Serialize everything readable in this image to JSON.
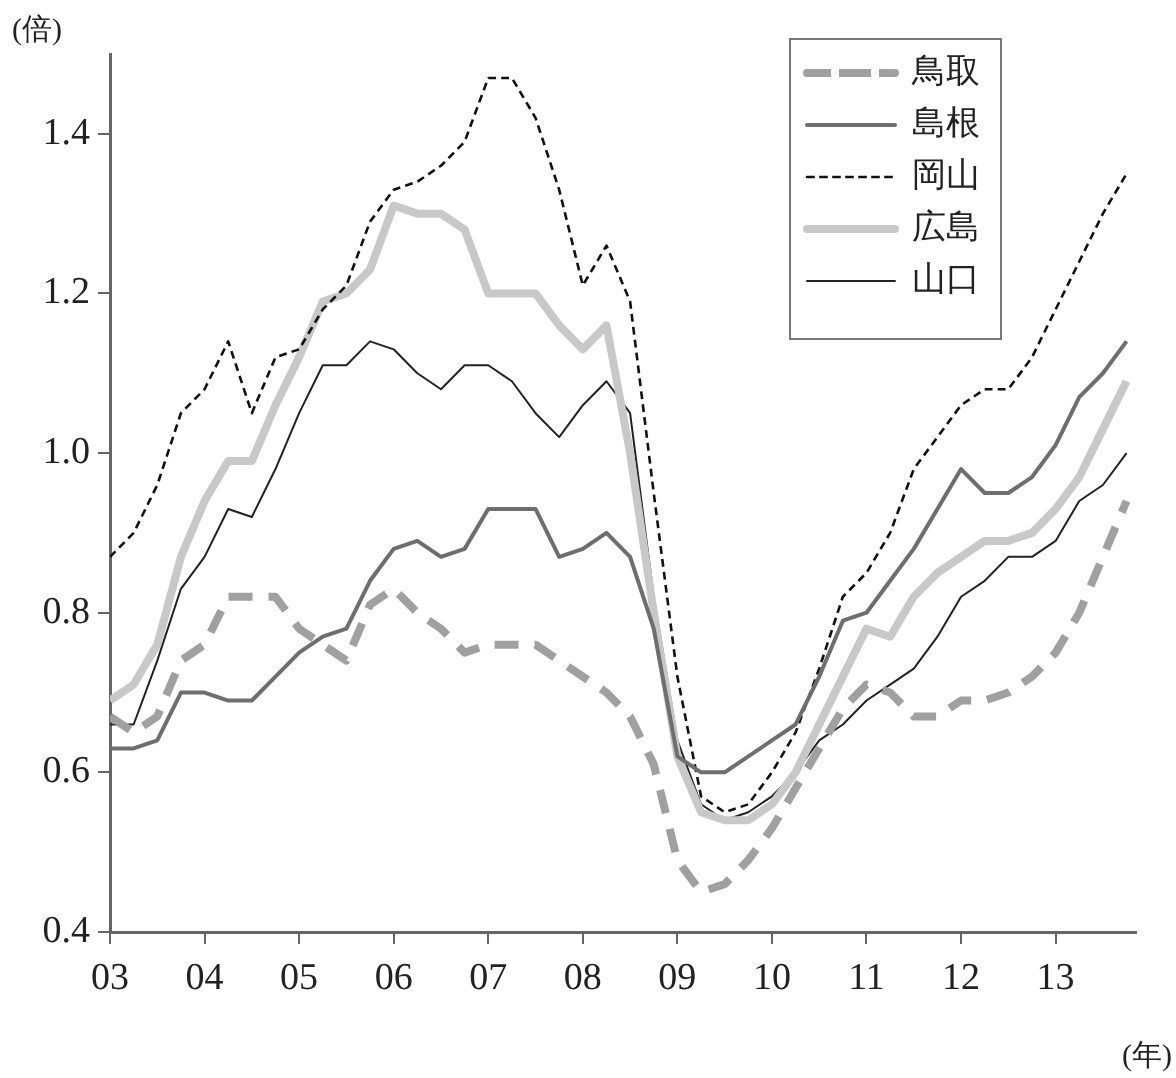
{
  "chart_data": {
    "type": "line",
    "ylabel": "(倍)",
    "xlabel": "(年)",
    "x": [
      2003,
      2003.25,
      2003.5,
      2003.75,
      2004,
      2004.25,
      2004.5,
      2004.75,
      2005,
      2005.25,
      2005.5,
      2005.75,
      2006,
      2006.25,
      2006.5,
      2006.75,
      2007,
      2007.25,
      2007.5,
      2007.75,
      2008,
      2008.25,
      2008.5,
      2008.75,
      2009,
      2009.25,
      2009.5,
      2009.75,
      2010,
      2010.25,
      2010.5,
      2010.75,
      2011,
      2011.25,
      2011.5,
      2011.75,
      2012,
      2012.25,
      2012.5,
      2012.75,
      2013,
      2013.25,
      2013.5,
      2013.75
    ],
    "series": [
      {
        "name": "鳥取",
        "color": "#a0a0a0",
        "line_style": "dashed",
        "values": [
          0.67,
          0.65,
          0.67,
          0.74,
          0.76,
          0.82,
          0.82,
          0.82,
          0.78,
          0.76,
          0.74,
          0.81,
          0.83,
          0.8,
          0.78,
          0.75,
          0.76,
          0.76,
          0.76,
          0.74,
          0.72,
          0.7,
          0.67,
          0.61,
          0.49,
          0.45,
          0.46,
          0.49,
          0.53,
          0.58,
          0.63,
          0.68,
          0.71,
          0.7,
          0.67,
          0.67,
          0.69,
          0.69,
          0.7,
          0.72,
          0.75,
          0.8,
          0.87,
          0.94
        ]
      },
      {
        "name": "島根",
        "color": "#6e6e6e",
        "line_style": "solid",
        "values": [
          0.63,
          0.63,
          0.64,
          0.7,
          0.7,
          0.69,
          0.69,
          0.72,
          0.75,
          0.77,
          0.78,
          0.84,
          0.88,
          0.89,
          0.87,
          0.88,
          0.93,
          0.93,
          0.93,
          0.87,
          0.88,
          0.9,
          0.87,
          0.78,
          0.62,
          0.6,
          0.6,
          0.62,
          0.64,
          0.66,
          0.72,
          0.79,
          0.8,
          0.84,
          0.88,
          0.93,
          0.98,
          0.95,
          0.95,
          0.97,
          1.01,
          1.07,
          1.1,
          1.14
        ]
      },
      {
        "name": "岡山",
        "color": "#111111",
        "line_style": "dashed",
        "values": [
          0.87,
          0.9,
          0.96,
          1.05,
          1.08,
          1.14,
          1.05,
          1.12,
          1.13,
          1.18,
          1.21,
          1.29,
          1.33,
          1.34,
          1.36,
          1.39,
          1.47,
          1.47,
          1.42,
          1.33,
          1.21,
          1.26,
          1.19,
          0.95,
          0.72,
          0.57,
          0.55,
          0.56,
          0.6,
          0.65,
          0.73,
          0.82,
          0.85,
          0.9,
          0.98,
          1.02,
          1.06,
          1.08,
          1.08,
          1.12,
          1.18,
          1.24,
          1.3,
          1.35
        ]
      },
      {
        "name": "広島",
        "color": "#c8c8c8",
        "line_style": "solid",
        "values": [
          0.69,
          0.71,
          0.76,
          0.87,
          0.94,
          0.99,
          0.99,
          1.06,
          1.12,
          1.19,
          1.2,
          1.23,
          1.31,
          1.3,
          1.3,
          1.28,
          1.2,
          1.2,
          1.2,
          1.16,
          1.13,
          1.16,
          1.0,
          0.8,
          0.62,
          0.55,
          0.54,
          0.54,
          0.56,
          0.6,
          0.66,
          0.72,
          0.78,
          0.77,
          0.82,
          0.85,
          0.87,
          0.89,
          0.89,
          0.9,
          0.93,
          0.97,
          1.03,
          1.09
        ]
      },
      {
        "name": "山口",
        "color": "#222222",
        "line_style": "solid",
        "values": [
          0.66,
          0.66,
          0.74,
          0.83,
          0.87,
          0.93,
          0.92,
          0.98,
          1.05,
          1.11,
          1.11,
          1.14,
          1.13,
          1.1,
          1.08,
          1.11,
          1.11,
          1.09,
          1.05,
          1.02,
          1.06,
          1.09,
          1.05,
          0.82,
          0.64,
          0.56,
          0.54,
          0.55,
          0.57,
          0.6,
          0.64,
          0.66,
          0.69,
          0.71,
          0.73,
          0.77,
          0.82,
          0.84,
          0.87,
          0.87,
          0.89,
          0.94,
          0.96,
          1.0
        ]
      }
    ],
    "xlim": [
      2003,
      2013.85
    ],
    "xticks": [
      {
        "value": 2003,
        "label": "03"
      },
      {
        "value": 2004,
        "label": "04"
      },
      {
        "value": 2005,
        "label": "05"
      },
      {
        "value": 2006,
        "label": "06"
      },
      {
        "value": 2007,
        "label": "07"
      },
      {
        "value": 2008,
        "label": "08"
      },
      {
        "value": 2009,
        "label": "09"
      },
      {
        "value": 2010,
        "label": "10"
      },
      {
        "value": 2011,
        "label": "11"
      },
      {
        "value": 2012,
        "label": "12"
      },
      {
        "value": 2013,
        "label": "13"
      }
    ],
    "ylim": [
      0.4,
      1.5
    ],
    "yticks": [
      0.4,
      0.6,
      0.8,
      {
        "value": 1,
        "label": "1.0"
      },
      1.2,
      1.4
    ],
    "grid": false,
    "legend": "top right",
    "marker": "none"
  }
}
